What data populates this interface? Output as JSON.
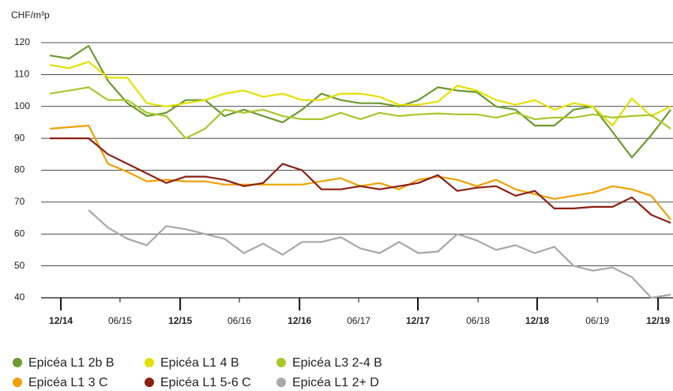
{
  "chart_data": {
    "type": "line",
    "y_label": "CHF/m³p",
    "x": [
      0,
      1,
      2,
      3,
      4,
      5,
      6,
      7,
      8,
      9,
      10,
      11,
      12,
      13,
      14,
      15,
      16,
      17,
      18,
      19,
      20,
      21,
      22,
      23,
      24,
      25,
      26,
      27,
      28,
      29,
      30,
      31,
      32
    ],
    "xlim": [
      -0.45,
      32.12
    ],
    "xticks": [
      {
        "value": 0.57,
        "label": "12/14"
      },
      {
        "value": 3.62,
        "label": "06/15"
      },
      {
        "value": 6.72,
        "label": "12/15"
      },
      {
        "value": 9.77,
        "label": "06/16"
      },
      {
        "value": 12.87,
        "label": "12/16"
      },
      {
        "value": 15.92,
        "label": "06/17"
      },
      {
        "value": 18.97,
        "label": "12/17"
      },
      {
        "value": 22.07,
        "label": "06/18"
      },
      {
        "value": 25.12,
        "label": "12/18"
      },
      {
        "value": 28.22,
        "label": "06/19"
      },
      {
        "value": 31.35,
        "label": "12/19"
      }
    ],
    "ylim": [
      40,
      120
    ],
    "yticks": [
      40,
      50,
      60,
      70,
      80,
      90,
      100,
      110,
      120
    ],
    "grid": true,
    "series": [
      {
        "name": "Epicéa L1 2b B",
        "color": "#6b9a2f",
        "values": [
          116,
          115,
          119,
          108,
          101,
          97,
          98,
          102,
          102,
          97,
          99,
          97,
          95,
          99,
          104,
          102,
          101,
          101,
          100,
          102,
          106,
          105,
          104.5,
          100,
          99,
          94,
          94,
          99,
          100,
          92,
          84,
          91,
          99
        ]
      },
      {
        "name": "Epicéa L1 4 B",
        "color": "#e4e000",
        "values": [
          113,
          112,
          114,
          109,
          109,
          101,
          100,
          101,
          102,
          104,
          105,
          103,
          104,
          102,
          102,
          104,
          104,
          103,
          100.5,
          100.5,
          101.5,
          106.5,
          105,
          102,
          100.5,
          102,
          99,
          101,
          100,
          94,
          102.5,
          97,
          100
        ]
      },
      {
        "name": "Epicéa L3 2-4 B",
        "color": "#a9c72b",
        "values": [
          104,
          105,
          106,
          102,
          102,
          98,
          97,
          90,
          93,
          99,
          98,
          99,
          97,
          96,
          96,
          98,
          96,
          98,
          97,
          97.5,
          97.8,
          97.5,
          97.5,
          96.5,
          98,
          96,
          96.5,
          96.5,
          97.5,
          96.5,
          97,
          97.3,
          93
        ]
      },
      {
        "name": "Epicéa L1 3 C",
        "color": "#f0a000",
        "values": [
          93,
          93.5,
          94,
          82,
          79.5,
          76.5,
          77,
          76.5,
          76.5,
          75.5,
          75.5,
          75.5,
          75.5,
          75.5,
          76.5,
          77.5,
          75,
          76,
          74,
          77,
          78,
          77,
          75,
          77,
          74,
          72.5,
          71,
          72,
          73,
          75,
          74,
          72,
          64.5
        ]
      },
      {
        "name": "Epicéa L1 5-6 C",
        "color": "#8b2014",
        "values": [
          90,
          90,
          90,
          85,
          82,
          79,
          76,
          78,
          78,
          77,
          75,
          76,
          82,
          80,
          74,
          74,
          75,
          74,
          75,
          76,
          78.5,
          73.5,
          74.5,
          75,
          72,
          73.5,
          68,
          68,
          68.5,
          68.5,
          71.5,
          66,
          63.5
        ]
      },
      {
        "name": "Epicéa L1 2+ D",
        "color": "#a8a8a8",
        "values": [
          null,
          null,
          67.5,
          62,
          58.5,
          56.5,
          62.5,
          61.5,
          60,
          58.5,
          54,
          57,
          53.5,
          57.5,
          57.5,
          59,
          55.5,
          54,
          57.5,
          54,
          54.5,
          60,
          58,
          55,
          56.5,
          54,
          56,
          50,
          48.5,
          49.5,
          46.5,
          40,
          41
        ]
      }
    ]
  }
}
